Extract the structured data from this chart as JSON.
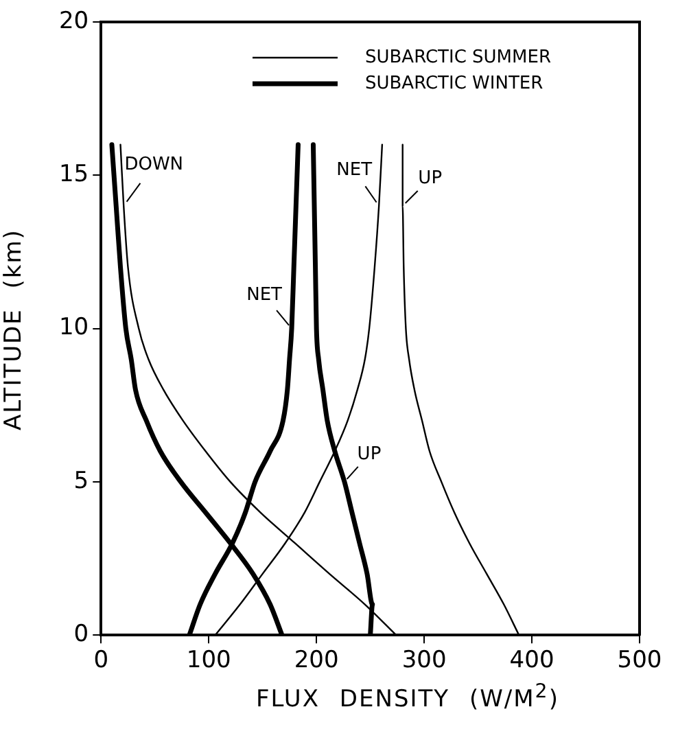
{
  "chart_data": {
    "type": "line",
    "xlabel": "FLUX DENSITY (W/M$^{2}$)",
    "ylabel": "ALTITUDE (km)",
    "xlim": [
      0,
      500
    ],
    "xticks": [
      0,
      100,
      200,
      300,
      400,
      500
    ],
    "ylim": [
      0,
      20
    ],
    "yticks": [
      0,
      5,
      10,
      15,
      20
    ],
    "grid": false,
    "legend": "top right",
    "marker": "none",
    "line_style": "solid",
    "series": [
      {
        "name": "SUBARCTIC SUMMER",
        "color": "#000000",
        "x": [
          274,
          245,
          212,
          180,
          148,
          120,
          97,
          76,
          58,
          44,
          35,
          25,
          21,
          18
        ],
        "values": [
          0,
          1,
          2,
          3,
          4,
          5,
          6,
          7,
          8,
          9,
          10,
          12,
          14,
          16
        ]
      },
      {
        "color": "#000000",
        "x": [
          106,
          129,
          150,
          171,
          189,
          203,
          217,
          229,
          238,
          245,
          249,
          254,
          258,
          261
        ],
        "values": [
          0,
          1,
          2,
          3,
          4,
          5,
          6,
          7,
          8,
          9,
          10,
          12,
          14,
          16
        ]
      },
      {
        "color": "#000000",
        "x": [
          388,
          374,
          358,
          342,
          328,
          316,
          305,
          298,
          291,
          286,
          283,
          281,
          280,
          280
        ],
        "values": [
          0,
          1,
          2,
          3,
          4,
          5,
          6,
          7,
          8,
          9,
          10,
          12,
          14,
          16
        ]
      },
      {
        "name": "SUBARCTIC WINTER",
        "color": "#000000",
        "x": [
          168,
          157,
          141,
          120,
          97,
          74,
          55,
          42,
          32,
          28,
          23,
          18,
          14,
          10
        ],
        "values": [
          0,
          1,
          2,
          3,
          4,
          5,
          6,
          7,
          8,
          9,
          10,
          12,
          14,
          16
        ]
      },
      {
        "color": "#000000",
        "x": [
          82,
          92,
          106,
          122,
          134,
          143,
          157,
          169,
          173,
          175,
          177,
          179,
          181,
          183
        ],
        "values": [
          0,
          1,
          2,
          3,
          4,
          5,
          6,
          7,
          8,
          9,
          10,
          12,
          14,
          16
        ]
      },
      {
        "color": "#000000",
        "x": [
          250,
          252,
          247,
          240,
          233,
          226,
          217,
          210,
          206,
          202,
          200,
          199,
          198,
          197
        ],
        "values": [
          0,
          1,
          2,
          3,
          4,
          5,
          6,
          7,
          8,
          9,
          10,
          12,
          14,
          16
        ]
      }
    ],
    "annotations": [
      {
        "text": "DOWN",
        "x": 21,
        "y": 14
      },
      {
        "text": "NET",
        "x": 177,
        "y": 10
      },
      {
        "text": "NET",
        "x": 258,
        "y": 14
      },
      {
        "text": "UP",
        "x": 280,
        "y": 14
      },
      {
        "text": "UP",
        "x": 226,
        "y": 5
      }
    ]
  }
}
